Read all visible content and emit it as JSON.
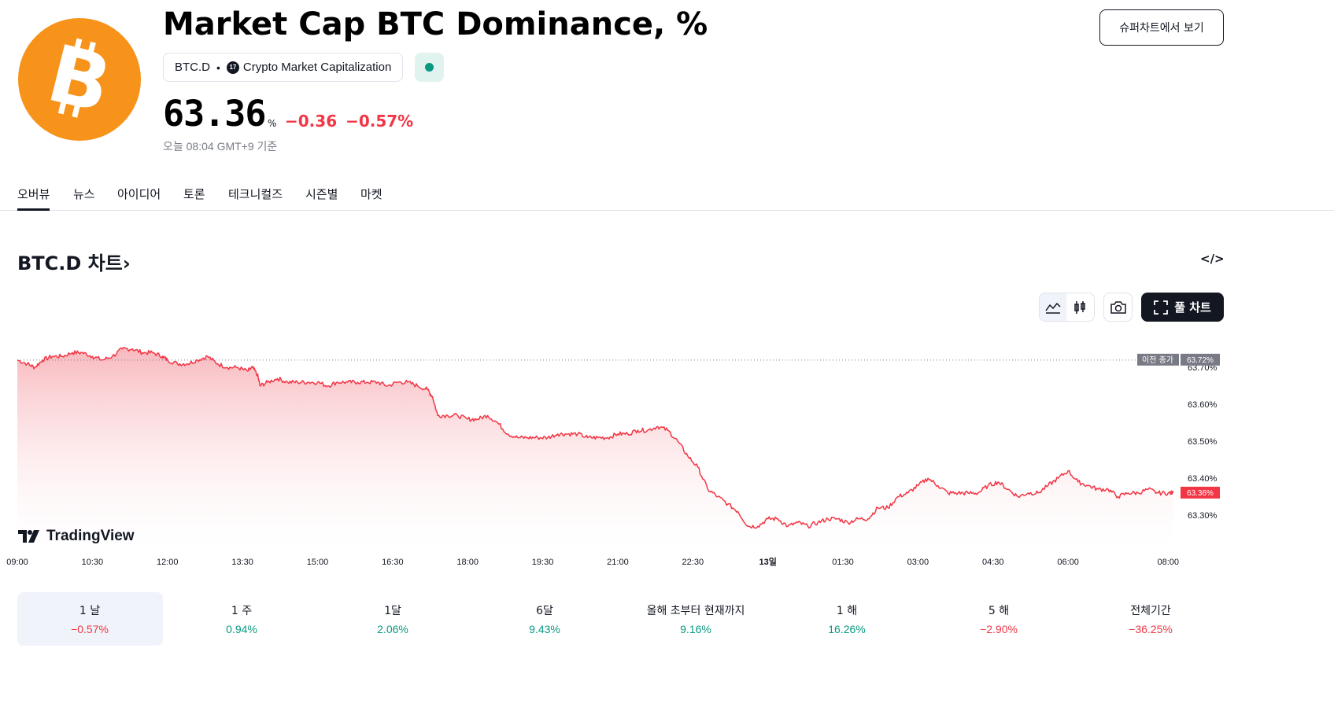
{
  "header": {
    "title": "Market Cap BTC Dominance, %",
    "symbol": "BTC.D",
    "exchange": "Crypto Market Capitalization",
    "exchange_icon": "tradingview-icon",
    "status_icon": "market-open-dot",
    "price": "63.36",
    "price_unit": "%",
    "change": "−0.36",
    "change_pct": "−0.57%",
    "as_of": "오늘 08:04 GMT+9 기준",
    "supercharts_button": "슈퍼차트에서 보기",
    "logo_icon": "bitcoin-icon"
  },
  "tabs": [
    {
      "label": "오버뷰",
      "active": true
    },
    {
      "label": "뉴스"
    },
    {
      "label": "아이디어"
    },
    {
      "label": "토론"
    },
    {
      "label": "테크니컬즈"
    },
    {
      "label": "시즌별"
    },
    {
      "label": "마켓"
    }
  ],
  "chart_section": {
    "heading": "BTC.D 차트",
    "heading_arrow": "›",
    "embed_icon": "code-embed-icon",
    "toolbar": {
      "line_icon": "area-chart-icon",
      "candle_icon": "candlestick-icon",
      "camera_icon": "camera-icon",
      "full_chart_label": "풀 차트",
      "full_chart_icon": "fullscreen-icon"
    },
    "watermark": "TradingView",
    "prev_close_label": "이전 종가",
    "prev_close_value": "63.72%",
    "last_value_label": "63.36%"
  },
  "chart_data": {
    "type": "area",
    "colors": {
      "line": "#f23645",
      "fill_top": "#f7b0b6",
      "fill_bottom": "#ffffff",
      "prev_close": "#787b86"
    },
    "prev_close": 63.72,
    "last": 63.36,
    "y_ticks": [
      "63.70%",
      "63.60%",
      "63.50%",
      "63.40%",
      "63.30%"
    ],
    "y_tick_values": [
      63.7,
      63.6,
      63.5,
      63.4,
      63.3
    ],
    "ylim": [
      63.215,
      63.775
    ],
    "x_ticks": [
      "09:00",
      "10:30",
      "12:00",
      "13:30",
      "15:00",
      "16:30",
      "18:00",
      "19:30",
      "21:00",
      "22:30",
      "13일",
      "01:30",
      "03:00",
      "04:30",
      "06:00",
      "08:00"
    ],
    "x_tick_hours": [
      0,
      1.5,
      3,
      4.5,
      6,
      7.5,
      9,
      10.5,
      12,
      13.5,
      15,
      16.5,
      18,
      19.5,
      21,
      23
    ],
    "xlim_hours": [
      0,
      23.2
    ],
    "series": [
      {
        "points": [
          [
            0.0,
            63.72
          ],
          [
            0.2,
            63.71
          ],
          [
            0.35,
            63.7
          ],
          [
            0.5,
            63.72
          ],
          [
            0.7,
            63.73
          ],
          [
            0.9,
            63.73
          ],
          [
            1.1,
            63.74
          ],
          [
            1.3,
            63.74
          ],
          [
            1.5,
            63.73
          ],
          [
            1.7,
            63.72
          ],
          [
            1.9,
            63.73
          ],
          [
            2.1,
            63.75
          ],
          [
            2.3,
            63.75
          ],
          [
            2.5,
            63.74
          ],
          [
            2.7,
            63.74
          ],
          [
            2.9,
            63.73
          ],
          [
            3.0,
            63.72
          ],
          [
            3.2,
            63.71
          ],
          [
            3.4,
            63.71
          ],
          [
            3.6,
            63.72
          ],
          [
            3.8,
            63.73
          ],
          [
            4.0,
            63.71
          ],
          [
            4.2,
            63.7
          ],
          [
            4.4,
            63.7
          ],
          [
            4.6,
            63.69
          ],
          [
            4.7,
            63.7
          ],
          [
            4.8,
            63.68
          ],
          [
            4.85,
            63.65
          ],
          [
            5.0,
            63.66
          ],
          [
            5.2,
            63.67
          ],
          [
            5.4,
            63.66
          ],
          [
            5.6,
            63.66
          ],
          [
            5.8,
            63.66
          ],
          [
            6.0,
            63.66
          ],
          [
            6.2,
            63.65
          ],
          [
            6.4,
            63.66
          ],
          [
            6.6,
            63.66
          ],
          [
            6.8,
            63.66
          ],
          [
            7.0,
            63.66
          ],
          [
            7.2,
            63.66
          ],
          [
            7.4,
            63.65
          ],
          [
            7.6,
            63.66
          ],
          [
            7.8,
            63.66
          ],
          [
            8.0,
            63.65
          ],
          [
            8.2,
            63.64
          ],
          [
            8.3,
            63.62
          ],
          [
            8.4,
            63.57
          ],
          [
            8.6,
            63.57
          ],
          [
            8.8,
            63.57
          ],
          [
            9.0,
            63.56
          ],
          [
            9.2,
            63.56
          ],
          [
            9.4,
            63.57
          ],
          [
            9.6,
            63.55
          ],
          [
            9.8,
            63.52
          ],
          [
            10.0,
            63.51
          ],
          [
            10.2,
            63.51
          ],
          [
            10.4,
            63.51
          ],
          [
            10.6,
            63.51
          ],
          [
            10.8,
            63.52
          ],
          [
            11.0,
            63.52
          ],
          [
            11.2,
            63.52
          ],
          [
            11.4,
            63.51
          ],
          [
            11.6,
            63.51
          ],
          [
            11.8,
            63.51
          ],
          [
            12.0,
            63.52
          ],
          [
            12.2,
            63.52
          ],
          [
            12.4,
            63.53
          ],
          [
            12.6,
            63.53
          ],
          [
            12.8,
            63.54
          ],
          [
            13.0,
            63.53
          ],
          [
            13.2,
            63.5
          ],
          [
            13.4,
            63.46
          ],
          [
            13.6,
            63.43
          ],
          [
            13.8,
            63.37
          ],
          [
            14.0,
            63.35
          ],
          [
            14.2,
            63.33
          ],
          [
            14.4,
            63.31
          ],
          [
            14.6,
            63.27
          ],
          [
            14.8,
            63.27
          ],
          [
            15.0,
            63.29
          ],
          [
            15.2,
            63.29
          ],
          [
            15.4,
            63.27
          ],
          [
            15.6,
            63.28
          ],
          [
            15.8,
            63.27
          ],
          [
            16.0,
            63.28
          ],
          [
            16.2,
            63.29
          ],
          [
            16.4,
            63.29
          ],
          [
            16.6,
            63.28
          ],
          [
            16.8,
            63.29
          ],
          [
            17.0,
            63.29
          ],
          [
            17.2,
            63.32
          ],
          [
            17.4,
            63.32
          ],
          [
            17.6,
            63.35
          ],
          [
            17.8,
            63.36
          ],
          [
            18.0,
            63.38
          ],
          [
            18.2,
            63.4
          ],
          [
            18.4,
            63.38
          ],
          [
            18.6,
            63.36
          ],
          [
            18.8,
            63.36
          ],
          [
            19.0,
            63.36
          ],
          [
            19.2,
            63.36
          ],
          [
            19.4,
            63.38
          ],
          [
            19.6,
            63.39
          ],
          [
            19.8,
            63.37
          ],
          [
            20.0,
            63.35
          ],
          [
            20.2,
            63.36
          ],
          [
            20.4,
            63.36
          ],
          [
            20.6,
            63.38
          ],
          [
            20.8,
            63.4
          ],
          [
            21.0,
            63.42
          ],
          [
            21.2,
            63.39
          ],
          [
            21.4,
            63.38
          ],
          [
            21.6,
            63.37
          ],
          [
            21.8,
            63.37
          ],
          [
            22.0,
            63.35
          ],
          [
            22.2,
            63.36
          ],
          [
            22.4,
            63.36
          ],
          [
            22.6,
            63.37
          ],
          [
            22.8,
            63.36
          ],
          [
            23.0,
            63.36
          ],
          [
            23.1,
            63.36
          ]
        ]
      }
    ]
  },
  "periods": [
    {
      "label": "1 날",
      "value": "−0.57%",
      "sign": "neg",
      "active": true
    },
    {
      "label": "1 주",
      "value": "0.94%",
      "sign": "pos"
    },
    {
      "label": "1달",
      "value": "2.06%",
      "sign": "pos"
    },
    {
      "label": "6달",
      "value": "9.43%",
      "sign": "pos"
    },
    {
      "label": "올해 초부터 현재까지",
      "value": "9.16%",
      "sign": "pos"
    },
    {
      "label": "1 해",
      "value": "16.26%",
      "sign": "pos"
    },
    {
      "label": "5 해",
      "value": "−2.90%",
      "sign": "neg"
    },
    {
      "label": "전체기간",
      "value": "−36.25%",
      "sign": "neg"
    }
  ]
}
